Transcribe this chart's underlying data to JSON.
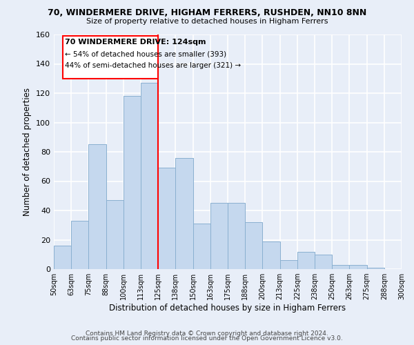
{
  "title": "70, WINDERMERE DRIVE, HIGHAM FERRERS, RUSHDEN, NN10 8NN",
  "subtitle": "Size of property relative to detached houses in Higham Ferrers",
  "xlabel": "Distribution of detached houses by size in Higham Ferrers",
  "ylabel": "Number of detached properties",
  "bin_labels": [
    "50sqm",
    "63sqm",
    "75sqm",
    "88sqm",
    "100sqm",
    "113sqm",
    "125sqm",
    "138sqm",
    "150sqm",
    "163sqm",
    "175sqm",
    "188sqm",
    "200sqm",
    "213sqm",
    "225sqm",
    "238sqm",
    "250sqm",
    "263sqm",
    "275sqm",
    "288sqm",
    "300sqm"
  ],
  "bar_values": [
    16,
    33,
    85,
    47,
    118,
    127,
    69,
    76,
    31,
    45,
    45,
    32,
    19,
    6,
    12,
    10,
    3,
    3,
    1,
    0,
    0
  ],
  "bar_color": "#c5d8ee",
  "bar_edge_color": "#8ab0d0",
  "vline_x_index": 6,
  "ylim": [
    0,
    160
  ],
  "yticks": [
    0,
    20,
    40,
    60,
    80,
    100,
    120,
    140,
    160
  ],
  "annotation_title": "70 WINDERMERE DRIVE: 124sqm",
  "annotation_line1": "← 54% of detached houses are smaller (393)",
  "annotation_line2": "44% of semi-detached houses are larger (321) →",
  "footer1": "Contains HM Land Registry data © Crown copyright and database right 2024.",
  "footer2": "Contains public sector information licensed under the Open Government Licence v3.0.",
  "bg_color": "#e8eef8",
  "plot_bg_color": "#e8eef8",
  "grid_color": "#ffffff"
}
